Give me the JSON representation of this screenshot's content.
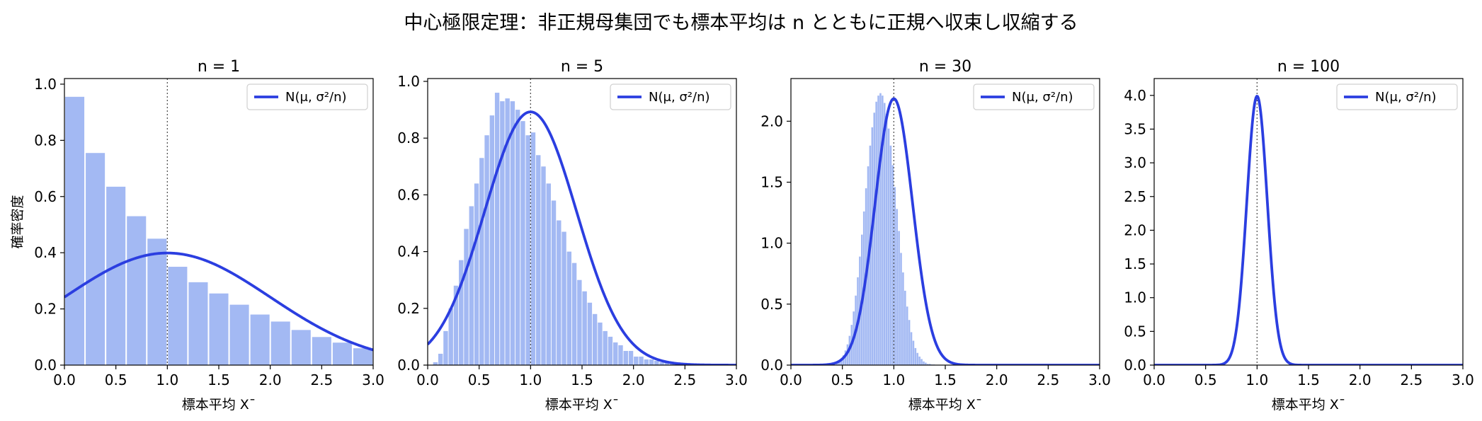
{
  "figure": {
    "suptitle": "中心極限定理：非正規母集団でも標本平均は n とともに正規へ収束し収縮する"
  },
  "colors": {
    "hist_fill": "#a3b9f3",
    "curve": "#2b3ee0",
    "mean_line": "#555555"
  },
  "chart_data": [
    {
      "type": "bar",
      "title": "n = 1",
      "xlabel": "標本平均 X¯",
      "ylabel": "確率密度",
      "xlim": [
        0,
        3
      ],
      "ylim": [
        0,
        1.02
      ],
      "xticks": [
        "0.0",
        "0.5",
        "1.0",
        "1.5",
        "2.0",
        "2.5",
        "3.0"
      ],
      "yticks": [
        "0.0",
        "0.2",
        "0.4",
        "0.6",
        "0.8",
        "1.0"
      ],
      "mean": 1.0,
      "sigma": 1.0,
      "legend": "N(μ, σ²/n)",
      "legend_position": "top-right",
      "grid": false,
      "bin_width": 0.2,
      "bins_start": 0,
      "hist": [
        0.955,
        0.755,
        0.635,
        0.53,
        0.45,
        0.35,
        0.295,
        0.255,
        0.215,
        0.18,
        0.155,
        0.125,
        0.1,
        0.08,
        0.06
      ]
    },
    {
      "type": "bar",
      "title": "n = 5",
      "xlabel": "標本平均 X¯",
      "ylabel": "",
      "xlim": [
        0,
        3
      ],
      "ylim": [
        0,
        1.01
      ],
      "xticks": [
        "0.0",
        "0.5",
        "1.0",
        "1.5",
        "2.0",
        "2.5",
        "3.0"
      ],
      "yticks": [
        "0.0",
        "0.2",
        "0.4",
        "0.6",
        "0.8",
        "1.0"
      ],
      "mean": 1.0,
      "sigma": 0.447,
      "legend": "N(μ, σ²/n)",
      "legend_position": "top-right",
      "grid": false,
      "bin_width": 0.05,
      "bins_start": 0,
      "hist": [
        0,
        0.01,
        0.04,
        0.12,
        0.2,
        0.28,
        0.37,
        0.48,
        0.56,
        0.64,
        0.73,
        0.81,
        0.88,
        0.96,
        0.93,
        0.94,
        0.93,
        0.9,
        0.86,
        0.81,
        0.82,
        0.74,
        0.7,
        0.64,
        0.58,
        0.51,
        0.47,
        0.4,
        0.36,
        0.3,
        0.26,
        0.22,
        0.18,
        0.15,
        0.12,
        0.1,
        0.08,
        0.07,
        0.05,
        0.05,
        0.03,
        0.03,
        0.02,
        0.02,
        0.015,
        0.01,
        0.01,
        0.005,
        0.005,
        0.005,
        0.004
      ]
    },
    {
      "type": "bar",
      "title": "n = 30",
      "xlabel": "標本平均 X¯",
      "ylabel": "",
      "xlim": [
        0,
        3
      ],
      "ylim": [
        0,
        2.35
      ],
      "xticks": [
        "0.0",
        "0.5",
        "1.0",
        "1.5",
        "2.0",
        "2.5",
        "3.0"
      ],
      "yticks": [
        "0.0",
        "0.5",
        "1.0",
        "1.5",
        "2.0"
      ],
      "mean": 1.0,
      "sigma": 0.1826,
      "legend": "N(μ, σ²/n)",
      "legend_position": "top-right",
      "grid": false,
      "bin_width": 0.02,
      "bins_start": 0.44,
      "hist": [
        0.02,
        0.03,
        0.05,
        0.08,
        0.12,
        0.17,
        0.24,
        0.33,
        0.44,
        0.57,
        0.72,
        0.89,
        1.07,
        1.26,
        1.45,
        1.63,
        1.8,
        1.95,
        2.07,
        2.16,
        2.21,
        2.23,
        2.21,
        2.15,
        2.06,
        1.94,
        1.8,
        1.64,
        1.46,
        1.28,
        1.1,
        0.92,
        0.76,
        0.61,
        0.48,
        0.37,
        0.27,
        0.2,
        0.14,
        0.1,
        0.07,
        0.05,
        0.03,
        0.02,
        0.01,
        0.01,
        0.005,
        0.005
      ]
    },
    {
      "type": "line",
      "title": "n = 100",
      "xlabel": "標本平均 X¯",
      "ylabel": "",
      "xlim": [
        0,
        3
      ],
      "ylim": [
        0,
        4.25
      ],
      "xticks": [
        "0.0",
        "0.5",
        "1.0",
        "1.5",
        "2.0",
        "2.5",
        "3.0"
      ],
      "yticks": [
        "0.0",
        "0.5",
        "1.0",
        "1.5",
        "2.0",
        "2.5",
        "3.0",
        "3.5",
        "4.0"
      ],
      "mean": 1.0,
      "sigma": 0.1,
      "legend": "N(μ, σ²/n)",
      "legend_position": "top-right",
      "grid": false,
      "bin_width": 0.01,
      "bins_start": 0,
      "hist": []
    }
  ]
}
